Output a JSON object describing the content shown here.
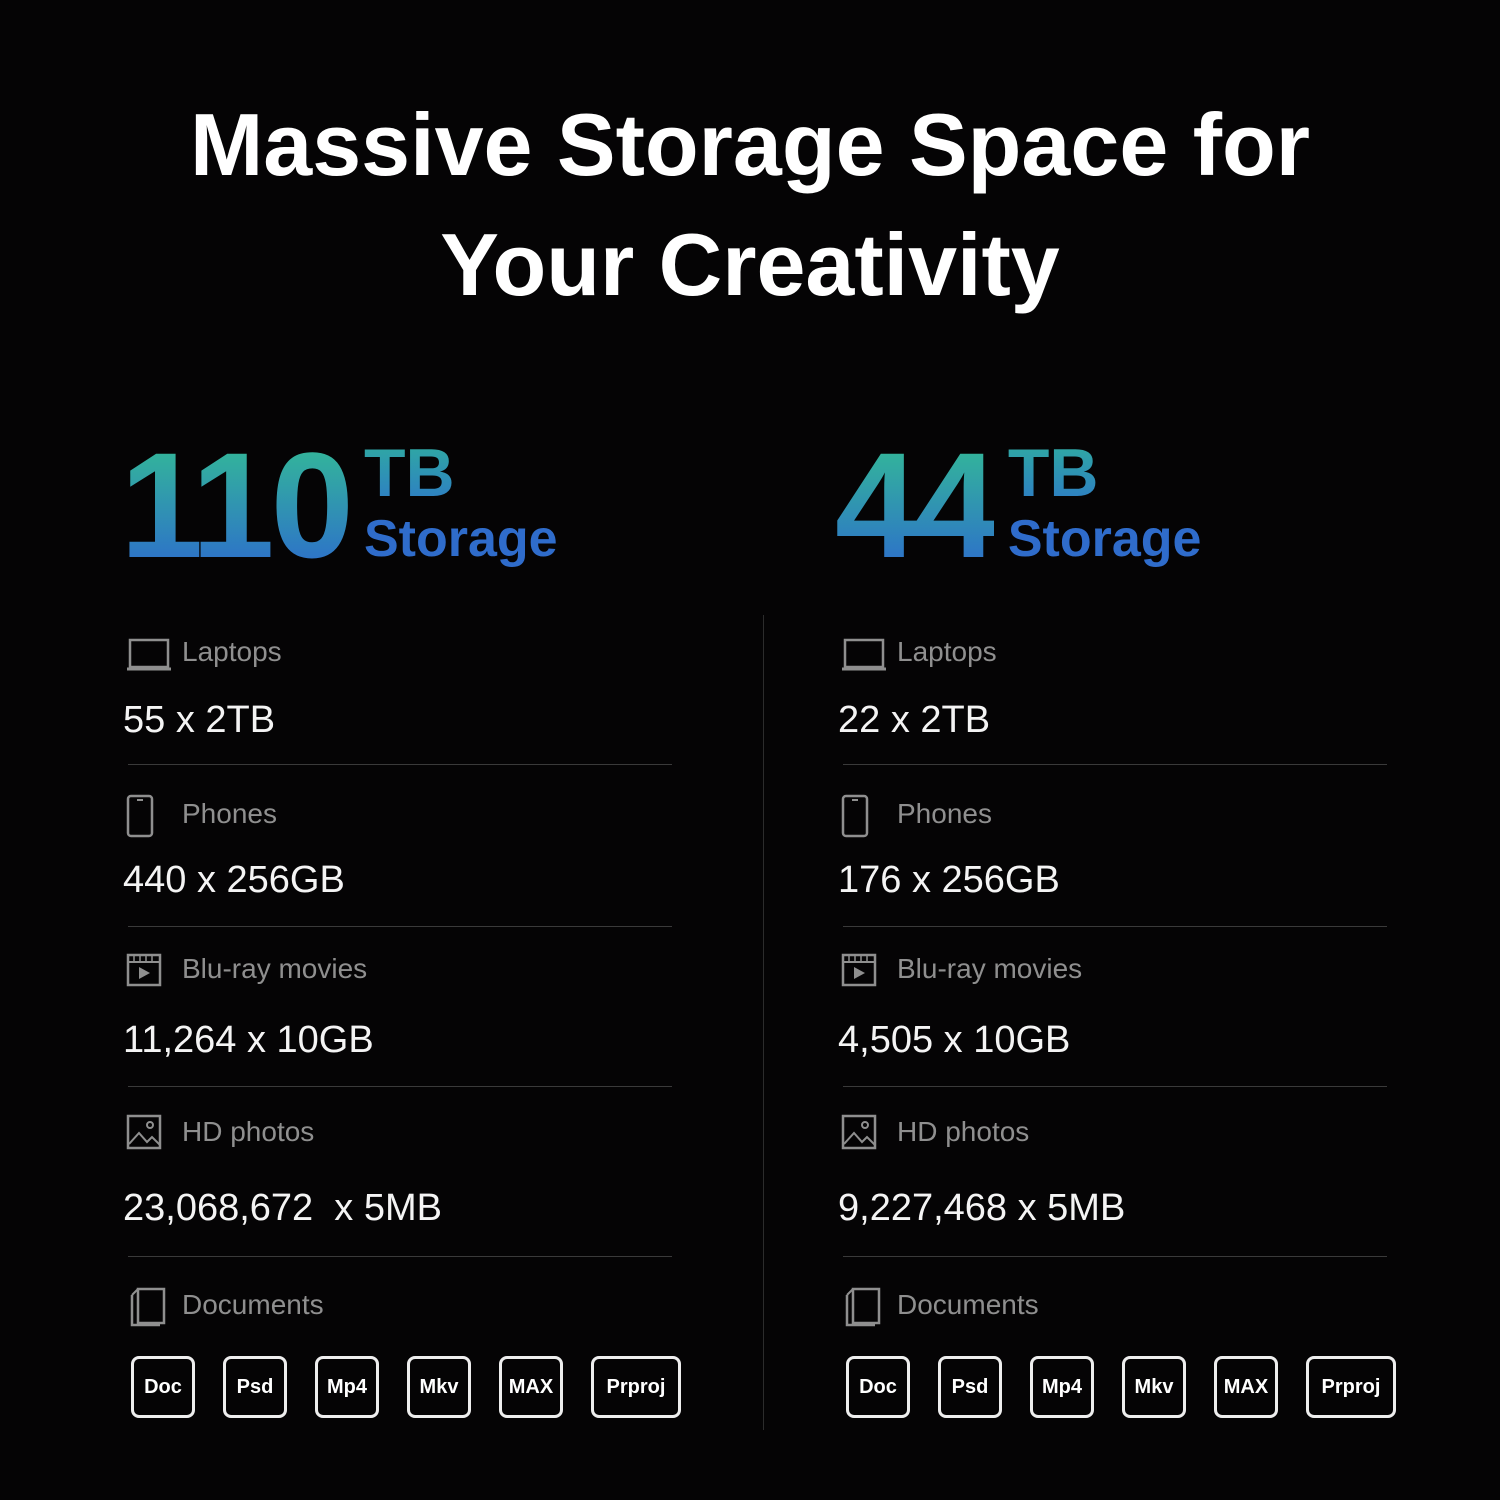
{
  "title_line1": "Massive Storage Space for",
  "title_line2": "Your Creativity",
  "colors": {
    "gradient_top": "#33b59a",
    "gradient_bottom": "#2d6fcb",
    "background": "#050405"
  },
  "columns": [
    {
      "capacity": "110",
      "unit": "TB",
      "storage_label": "Storage",
      "items": [
        {
          "icon": "laptop-icon",
          "label": "Laptops",
          "value": "55 x 2TB"
        },
        {
          "icon": "phone-icon",
          "label": "Phones",
          "value": "440 x 256GB"
        },
        {
          "icon": "film-icon",
          "label": "Blu-ray movies",
          "value": "11,264 x 10GB"
        },
        {
          "icon": "image-icon",
          "label": "HD photos",
          "value": "23,068,672  x 5MB"
        }
      ],
      "documents_label": "Documents",
      "formats": [
        "Doc",
        "Psd",
        "Mp4",
        "Mkv",
        "MAX",
        "Prproj"
      ]
    },
    {
      "capacity": "44",
      "unit": "TB",
      "storage_label": "Storage",
      "items": [
        {
          "icon": "laptop-icon",
          "label": "Laptops",
          "value": "22 x 2TB"
        },
        {
          "icon": "phone-icon",
          "label": "Phones",
          "value": "176 x 256GB"
        },
        {
          "icon": "film-icon",
          "label": "Blu-ray movies",
          "value": "4,505 x 10GB"
        },
        {
          "icon": "image-icon",
          "label": "HD photos",
          "value": "9,227,468 x 5MB"
        }
      ],
      "documents_label": "Documents",
      "formats": [
        "Doc",
        "Psd",
        "Mp4",
        "Mkv",
        "MAX",
        "Prproj"
      ]
    }
  ]
}
